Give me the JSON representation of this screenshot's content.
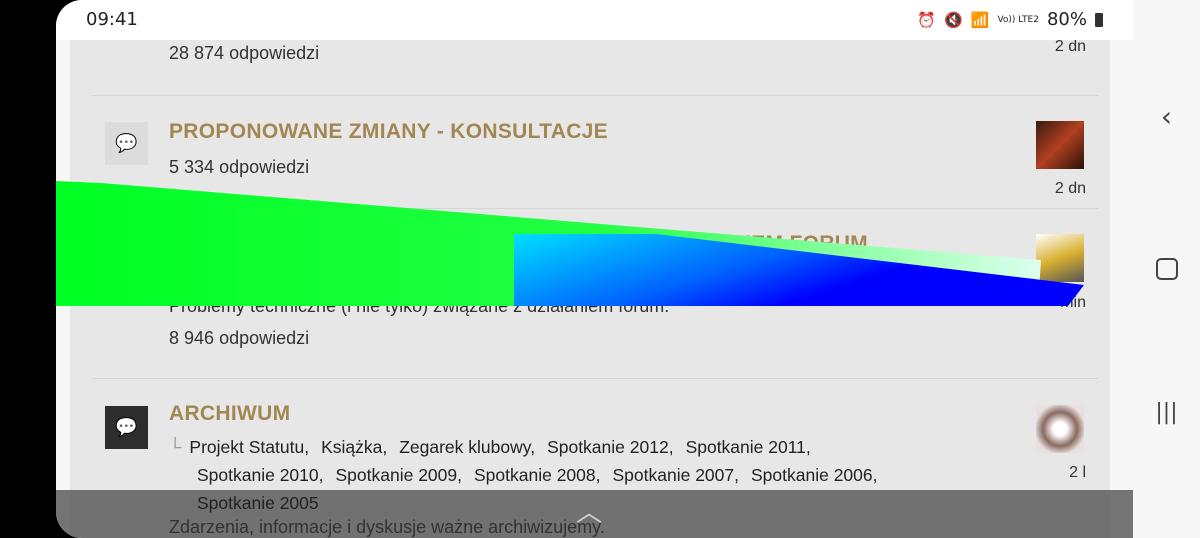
{
  "status": {
    "time": "09:41",
    "battery": "80%",
    "network": "Vo)) LTE2"
  },
  "forums": [
    {
      "count": "28 874",
      "count_label": "odpowiedzi",
      "ago": "2 dn"
    },
    {
      "title": "PROPONOWANE ZMIANY - KONSULTACJE",
      "count": "5 334",
      "count_label": "odpowiedzi",
      "ago": "2 dn"
    },
    {
      "title": "FORUM ŹLE DZIAŁA - USTERKI, PROBLEMY Z DZIAŁANIEM FORUM, PYTANIA, OPCJE, FUNKCJE",
      "desc": "Problemy techniczne (i nie tylko) związane z działaniem forum.",
      "count": "8 946",
      "count_label": "odpowiedzi",
      "ago": "min"
    },
    {
      "title": "ARCHIWUM",
      "subforums": [
        "Projekt Statutu,",
        "Książka,",
        "Zegarek klubowy,",
        "Spotkanie 2012,",
        "Spotkanie 2011,",
        "Spotkanie 2010,",
        "Spotkanie 2009,",
        "Spotkanie 2008,",
        "Spotkanie 2007,",
        "Spotkanie 2006,",
        "Spotkanie 2005"
      ],
      "desc": "Zdarzenia, informacje i dyskusje ważne archiwizujemy.",
      "ago": "2 l"
    }
  ],
  "colors": {
    "title": "#a38752",
    "content_bg": "#e8e7e7",
    "artifact_green": "#00ff22",
    "artifact_blue": "#0000ff",
    "artifact_cyan": "#00e0ff"
  }
}
